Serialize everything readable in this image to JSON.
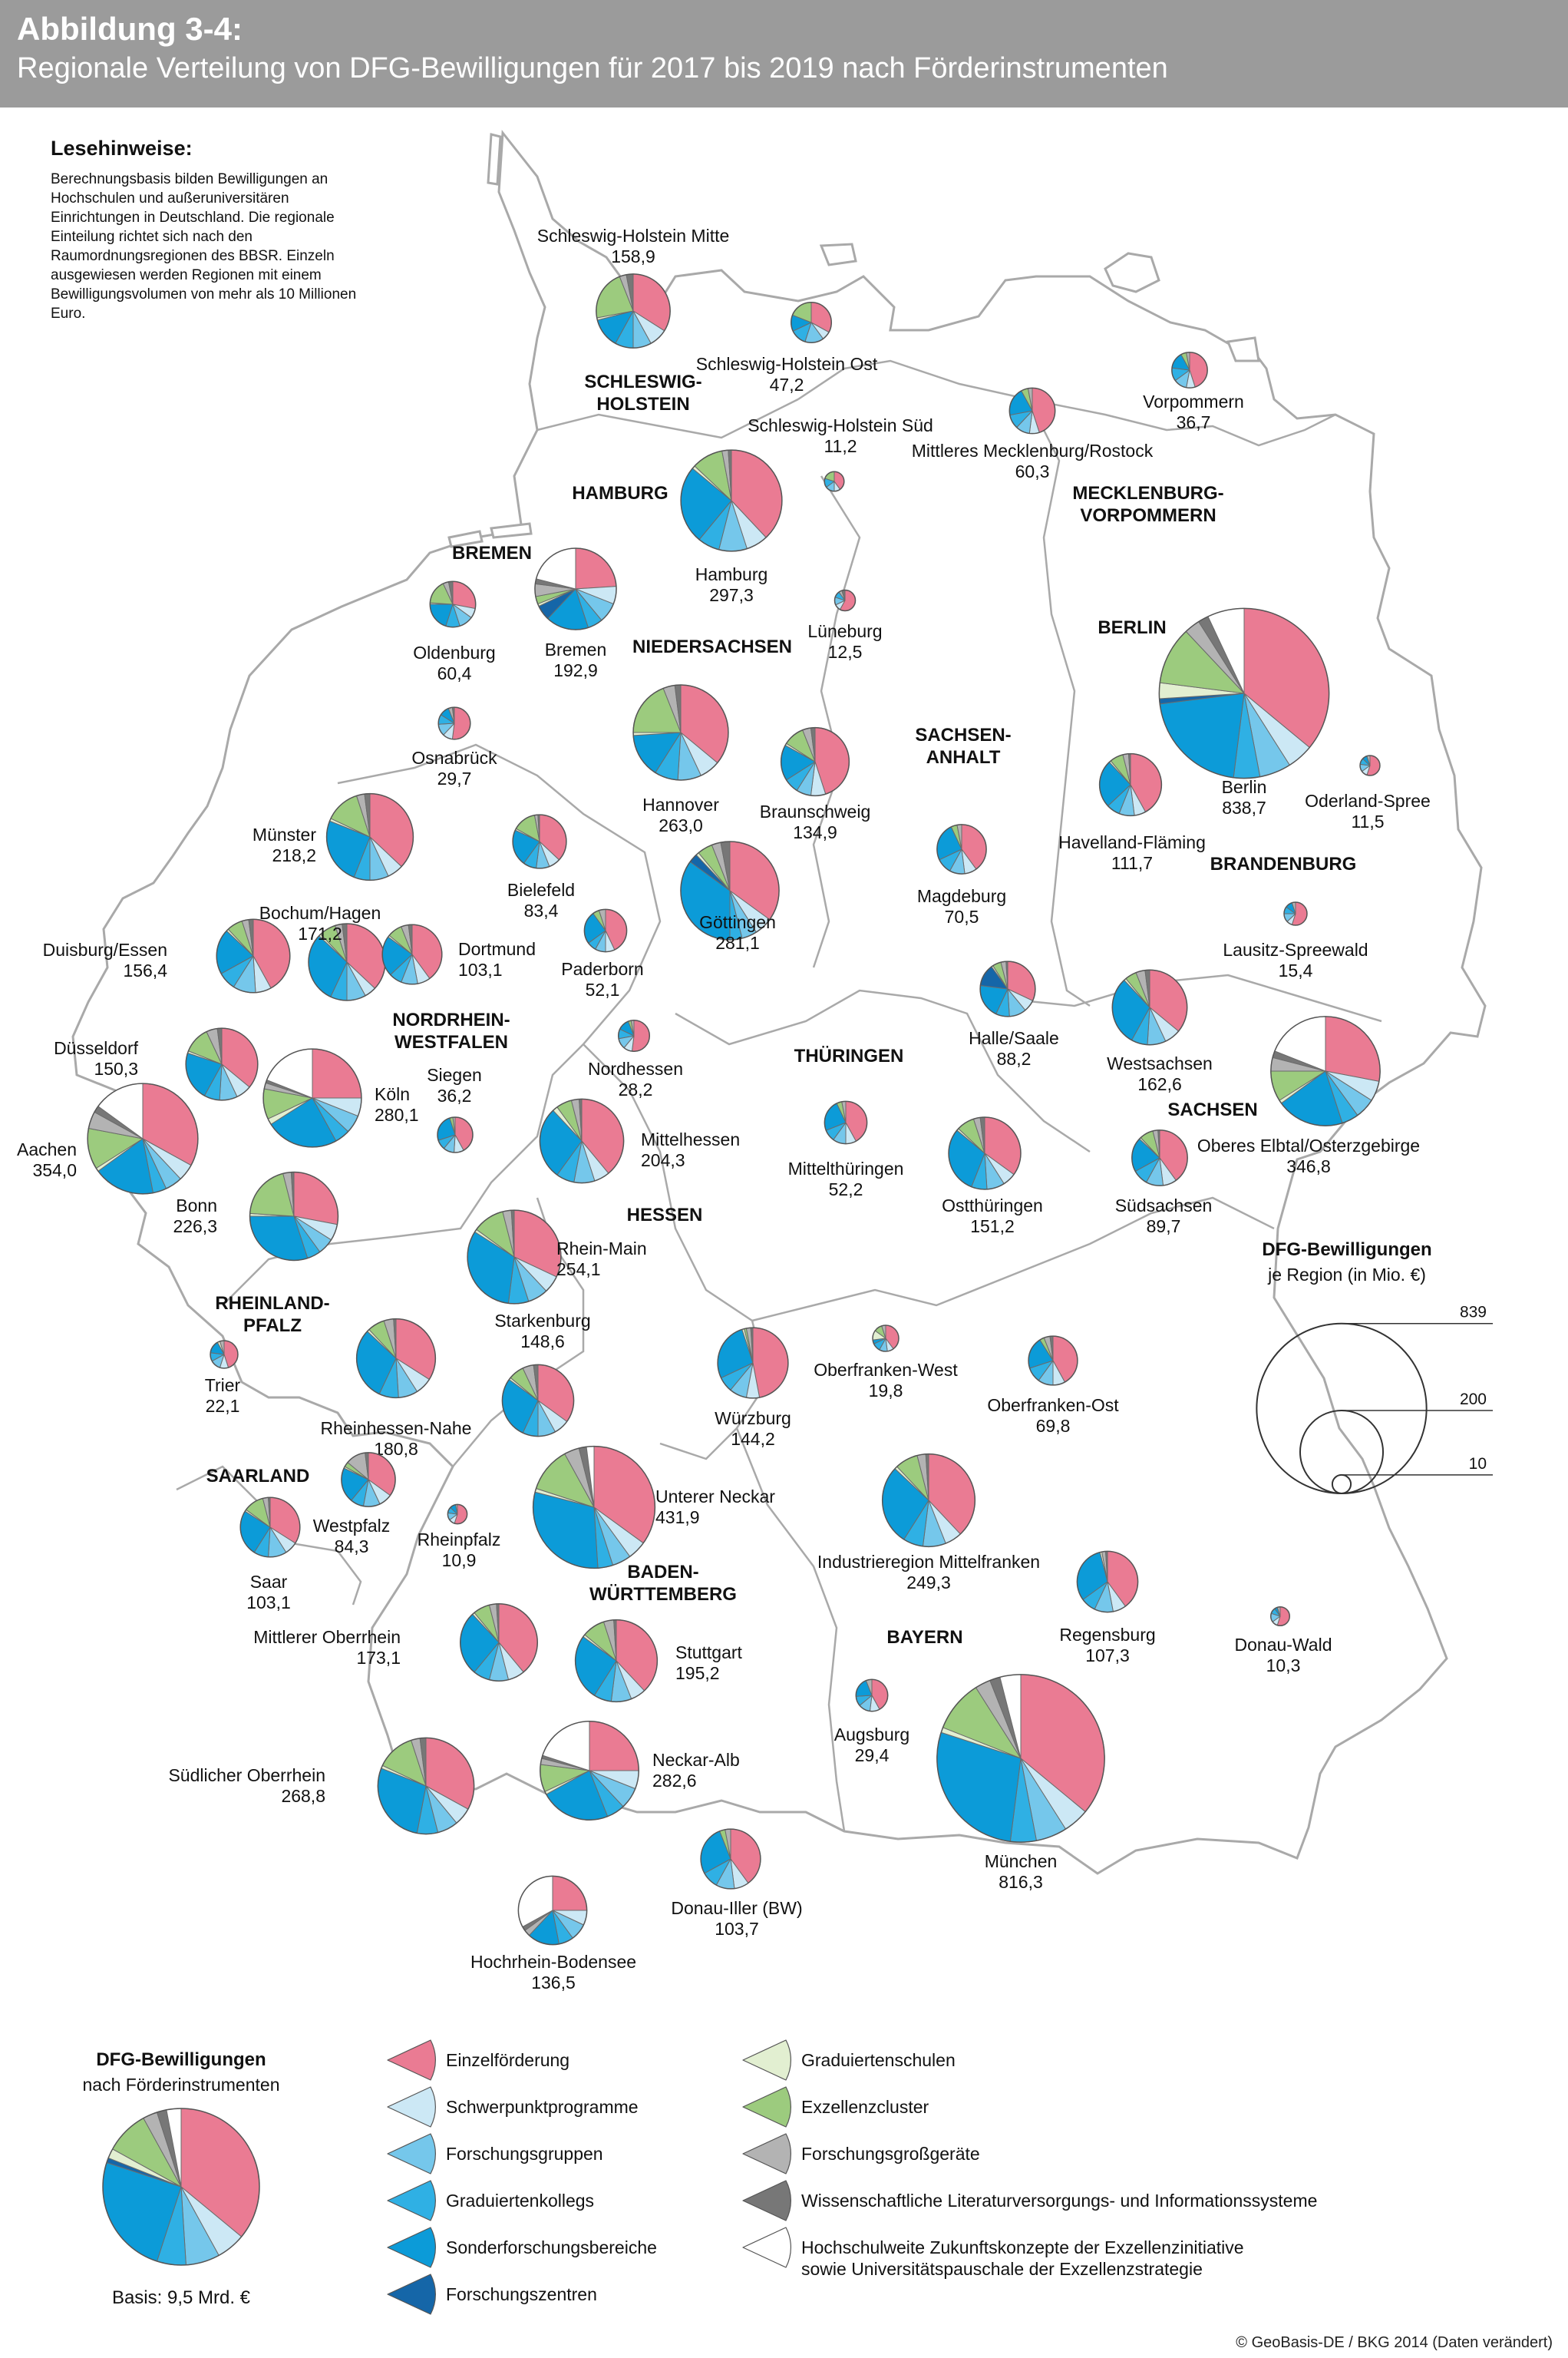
{
  "figure": {
    "label": "Abbildung 3-4:",
    "title": "Regionale Verteilung von DFG-Bewilligungen für 2017 bis 2019 nach Förderinstrumenten"
  },
  "notes": {
    "title": "Lesehinweise:",
    "text": "Berechnungsbasis bilden Bewilligungen an Hochschulen und außeruniversitären Einrichtungen in Deutschland. Die regionale Einteilung richtet sich nach den Raumordnungsregionen des BBSR. Einzeln ausgewiesen werden Regionen mit einem Bewilligungsvolumen von mehr als 10 Millionen Euro."
  },
  "colors": {
    "Einzelförderung": "#ea7b93",
    "Schwerpunktprogramme": "#cce8f5",
    "Forschungsgruppen": "#75c7eb",
    "Graduiertenkollegs": "#2fb0e4",
    "Sonderforschungsbereiche": "#0c9bd8",
    "Forschungszentren": "#1566a8",
    "Graduiertenschulen": "#e2efd1",
    "Exzellenzcluster": "#9ccb7e",
    "Forschungsgroßgeräte": "#b3b3b3",
    "Wissenschaftliche Literaturversorgungs- und Informationssysteme": "#777777",
    "Hochschulweite Zukunftskonzepte": "#ffffff",
    "map_fill": "#ffffff",
    "map_stroke": "#a9a9a9",
    "background": "#ffffff"
  },
  "states": [
    {
      "name": "SCHLESWIG-HOLSTEIN"
    },
    {
      "name": "HAMBURG"
    },
    {
      "name": "BREMEN"
    },
    {
      "name": "NIEDERSACHSEN"
    },
    {
      "name": "MECKLENBURG-VORPOMMERN"
    },
    {
      "name": "BERLIN"
    },
    {
      "name": "BRANDENBURG"
    },
    {
      "name": "SACHSEN-ANHALT"
    },
    {
      "name": "SACHSEN"
    },
    {
      "name": "THÜRINGEN"
    },
    {
      "name": "NORDRHEIN-WESTFALEN"
    },
    {
      "name": "HESSEN"
    },
    {
      "name": "RHEINLAND-PFALZ"
    },
    {
      "name": "SAARLAND"
    },
    {
      "name": "BADEN-WÜRTTEMBERG"
    },
    {
      "name": "BAYERN"
    }
  ],
  "regions": [
    {
      "name": "Schleswig-Holstein Mitte",
      "value": 158.9,
      "value_label": "158,9",
      "shares": [
        0.34,
        0.08,
        0.08,
        0.08,
        0.13,
        0,
        0.01,
        0.22,
        0.03,
        0.03,
        0
      ]
    },
    {
      "name": "Schleswig-Holstein Ost",
      "value": 47.2,
      "value_label": "47,2",
      "shares": [
        0.33,
        0.07,
        0.15,
        0.13,
        0.13,
        0,
        0,
        0.19,
        0,
        0,
        0
      ]
    },
    {
      "name": "Schleswig-Holstein Süd",
      "value": 11.2,
      "value_label": "11,2",
      "shares": [
        0.4,
        0.1,
        0.15,
        0.15,
        0,
        0,
        0,
        0.2,
        0,
        0,
        0
      ]
    },
    {
      "name": "Hamburg",
      "value": 297.3,
      "value_label": "297,3",
      "shares": [
        0.38,
        0.07,
        0.09,
        0.07,
        0.25,
        0,
        0.01,
        0.1,
        0.02,
        0.01,
        0
      ]
    },
    {
      "name": "Bremen",
      "value": 192.9,
      "value_label": "192,9",
      "shares": [
        0.24,
        0.07,
        0.08,
        0.06,
        0.17,
        0.06,
        0.01,
        0.03,
        0.05,
        0.02,
        0.21
      ]
    },
    {
      "name": "Oldenburg",
      "value": 60.4,
      "value_label": "60,4",
      "shares": [
        0.28,
        0.07,
        0.1,
        0.1,
        0.2,
        0,
        0.01,
        0.17,
        0.04,
        0.03,
        0
      ]
    },
    {
      "name": "Osnabrück",
      "value": 29.7,
      "value_label": "29,7",
      "shares": [
        0.52,
        0.1,
        0.12,
        0.1,
        0.1,
        0,
        0,
        0,
        0.04,
        0.02,
        0
      ]
    },
    {
      "name": "Lüneburg",
      "value": 12.5,
      "value_label": "12,5",
      "shares": [
        0.58,
        0.1,
        0.12,
        0.1,
        0,
        0,
        0,
        0,
        0.05,
        0.05,
        0
      ]
    },
    {
      "name": "Mittleres Mecklenburg/Rostock",
      "value": 60.3,
      "value_label": "60,3",
      "shares": [
        0.45,
        0.07,
        0.1,
        0.1,
        0.2,
        0,
        0,
        0.05,
        0.03,
        0,
        0
      ]
    },
    {
      "name": "Vorpommern",
      "value": 36.7,
      "value_label": "36,7",
      "shares": [
        0.45,
        0.08,
        0.12,
        0.12,
        0.15,
        0,
        0,
        0.05,
        0.03,
        0,
        0
      ]
    },
    {
      "name": "Hannover",
      "value": 263.0,
      "value_label": "263,0",
      "shares": [
        0.36,
        0.07,
        0.08,
        0.08,
        0.15,
        0,
        0.01,
        0.19,
        0.04,
        0.02,
        0
      ]
    },
    {
      "name": "Braunschweig",
      "value": 134.9,
      "value_label": "134,9",
      "shares": [
        0.45,
        0.07,
        0.07,
        0.07,
        0.17,
        0,
        0.01,
        0.1,
        0.04,
        0.02,
        0
      ]
    },
    {
      "name": "Göttingen",
      "value": 281.1,
      "value_label": "281,1",
      "shares": [
        0.35,
        0.06,
        0.05,
        0.04,
        0.35,
        0.03,
        0.01,
        0.05,
        0.03,
        0.03,
        0
      ]
    },
    {
      "name": "Münster",
      "value": 218.2,
      "value_label": "218,2",
      "shares": [
        0.37,
        0.06,
        0.07,
        0.06,
        0.25,
        0,
        0.01,
        0.13,
        0.03,
        0.02,
        0
      ]
    },
    {
      "name": "Bielefeld",
      "value": 83.4,
      "value_label": "83,4",
      "shares": [
        0.37,
        0.07,
        0.08,
        0.08,
        0.22,
        0,
        0.01,
        0.14,
        0.02,
        0.01,
        0
      ]
    },
    {
      "name": "Bochum/Hagen",
      "value": 171.2,
      "value_label": "171,2",
      "shares": [
        0.37,
        0.05,
        0.08,
        0.07,
        0.3,
        0,
        0.01,
        0.07,
        0.03,
        0.02,
        0
      ]
    },
    {
      "name": "Dortmund",
      "value": 103.1,
      "value_label": "103,1",
      "shares": [
        0.4,
        0.07,
        0.09,
        0.07,
        0.22,
        0,
        0.01,
        0.08,
        0.04,
        0.02,
        0
      ]
    },
    {
      "name": "Paderborn",
      "value": 52.1,
      "value_label": "52,1",
      "shares": [
        0.43,
        0.07,
        0.08,
        0.07,
        0.25,
        0,
        0,
        0.05,
        0.05,
        0,
        0
      ]
    },
    {
      "name": "Duisburg/Essen",
      "value": 156.4,
      "value_label": "156,4",
      "shares": [
        0.42,
        0.07,
        0.1,
        0.08,
        0.2,
        0,
        0.01,
        0.07,
        0.03,
        0.02,
        0
      ]
    },
    {
      "name": "Düsseldorf",
      "value": 150.3,
      "value_label": "150,3",
      "shares": [
        0.36,
        0.07,
        0.08,
        0.07,
        0.22,
        0,
        0.01,
        0.12,
        0.05,
        0.02,
        0
      ]
    },
    {
      "name": "Köln",
      "value": 280.1,
      "value_label": "280,1",
      "shares": [
        0.25,
        0.06,
        0.06,
        0.05,
        0.24,
        0,
        0.02,
        0.1,
        0.02,
        0.01,
        0.19
      ]
    },
    {
      "name": "Siegen",
      "value": 36.2,
      "value_label": "36,2",
      "shares": [
        0.42,
        0.09,
        0.1,
        0.09,
        0.25,
        0,
        0,
        0.03,
        0.02,
        0,
        0
      ]
    },
    {
      "name": "Aachen",
      "value": 354.0,
      "value_label": "354,0",
      "shares": [
        0.33,
        0.05,
        0.05,
        0.04,
        0.18,
        0,
        0.01,
        0.12,
        0.05,
        0.02,
        0.15
      ]
    },
    {
      "name": "Bonn",
      "value": 226.3,
      "value_label": "226,3",
      "shares": [
        0.28,
        0.06,
        0.06,
        0.05,
        0.3,
        0,
        0.01,
        0.2,
        0.03,
        0.01,
        0
      ]
    },
    {
      "name": "Nordhessen",
      "value": 28.2,
      "value_label": "28,2",
      "shares": [
        0.52,
        0.09,
        0.11,
        0.1,
        0.12,
        0,
        0,
        0.03,
        0.03,
        0,
        0
      ]
    },
    {
      "name": "Mittelhessen",
      "value": 204.3,
      "value_label": "204,3",
      "shares": [
        0.39,
        0.06,
        0.08,
        0.07,
        0.28,
        0,
        0.02,
        0.06,
        0.03,
        0.01,
        0
      ]
    },
    {
      "name": "Rhein-Main",
      "value": 254.1,
      "value_label": "254,1",
      "shares": [
        0.32,
        0.06,
        0.07,
        0.07,
        0.32,
        0,
        0.01,
        0.11,
        0.03,
        0.01,
        0
      ]
    },
    {
      "name": "Starkenburg",
      "value": 148.6,
      "value_label": "148,6",
      "shares": [
        0.35,
        0.07,
        0.08,
        0.07,
        0.28,
        0,
        0.01,
        0.07,
        0.05,
        0.02,
        0
      ]
    },
    {
      "name": "Magdeburg",
      "value": 70.5,
      "value_label": "70,5",
      "shares": [
        0.4,
        0.08,
        0.1,
        0.1,
        0.25,
        0,
        0,
        0.04,
        0.03,
        0,
        0
      ]
    },
    {
      "name": "Halle/Saale",
      "value": 88.2,
      "value_label": "88,2",
      "shares": [
        0.32,
        0.07,
        0.1,
        0.08,
        0.2,
        0.13,
        0.01,
        0.05,
        0.03,
        0.01,
        0
      ]
    },
    {
      "name": "Mittelthüringen",
      "value": 52.2,
      "value_label": "52,2",
      "shares": [
        0.42,
        0.08,
        0.1,
        0.09,
        0.24,
        0,
        0,
        0.04,
        0.03,
        0,
        0
      ]
    },
    {
      "name": "Ostthüringen",
      "value": 151.2,
      "value_label": "151,2",
      "shares": [
        0.35,
        0.06,
        0.08,
        0.07,
        0.3,
        0,
        0.01,
        0.08,
        0.03,
        0.02,
        0
      ]
    },
    {
      "name": "Berlin",
      "value": 838.7,
      "value_label": "838,7",
      "shares": [
        0.36,
        0.05,
        0.06,
        0.05,
        0.21,
        0.01,
        0.03,
        0.11,
        0.03,
        0.02,
        0.07
      ]
    },
    {
      "name": "Havelland-Fläming",
      "value": 111.7,
      "value_label": "111,7",
      "shares": [
        0.42,
        0.06,
        0.08,
        0.07,
        0.25,
        0,
        0.01,
        0.07,
        0.03,
        0.01,
        0
      ]
    },
    {
      "name": "Oderland-Spree",
      "value": 11.5,
      "value_label": "11,5",
      "shares": [
        0.55,
        0.1,
        0.12,
        0.1,
        0.08,
        0,
        0,
        0,
        0.05,
        0,
        0
      ]
    },
    {
      "name": "Lausitz-Spreewald",
      "value": 15.4,
      "value_label": "15,4",
      "shares": [
        0.55,
        0.08,
        0.12,
        0.1,
        0.1,
        0,
        0,
        0,
        0.05,
        0,
        0
      ]
    },
    {
      "name": "Westsachsen",
      "value": 162.6,
      "value_label": "162,6",
      "shares": [
        0.36,
        0.07,
        0.08,
        0.07,
        0.3,
        0,
        0.01,
        0.05,
        0.04,
        0.02,
        0
      ]
    },
    {
      "name": "Oberes Elbtal/Osterzgebirge",
      "value": 346.8,
      "value_label": "346,8",
      "shares": [
        0.28,
        0.06,
        0.06,
        0.05,
        0.2,
        0,
        0.01,
        0.09,
        0.04,
        0.02,
        0.19
      ]
    },
    {
      "name": "Südsachsen",
      "value": 89.7,
      "value_label": "89,7",
      "shares": [
        0.4,
        0.08,
        0.1,
        0.09,
        0.2,
        0,
        0.01,
        0.08,
        0.03,
        0.01,
        0
      ]
    },
    {
      "name": "Trier",
      "value": 22.1,
      "value_label": "22,1",
      "shares": [
        0.45,
        0.1,
        0.12,
        0.1,
        0.15,
        0,
        0.03,
        0,
        0.05,
        0,
        0
      ]
    },
    {
      "name": "Rheinhessen-Nahe",
      "value": 180.8,
      "value_label": "180,8",
      "shares": [
        0.34,
        0.07,
        0.08,
        0.08,
        0.3,
        0,
        0.01,
        0.07,
        0.04,
        0.01,
        0
      ]
    },
    {
      "name": "Westpfalz",
      "value": 84.3,
      "value_label": "84,3",
      "shares": [
        0.35,
        0.08,
        0.1,
        0.08,
        0.21,
        0,
        0.01,
        0.03,
        0.12,
        0.02,
        0
      ]
    },
    {
      "name": "Rheinpfalz",
      "value": 10.9,
      "value_label": "10,9",
      "shares": [
        0.55,
        0.1,
        0.12,
        0.1,
        0.1,
        0,
        0,
        0,
        0.03,
        0,
        0
      ]
    },
    {
      "name": "Saar",
      "value": 103.1,
      "value_label": "103,1",
      "shares": [
        0.34,
        0.07,
        0.1,
        0.08,
        0.25,
        0,
        0.01,
        0.11,
        0.03,
        0.01,
        0
      ]
    },
    {
      "name": "Unterer Neckar",
      "value": 431.9,
      "value_label": "431,9",
      "shares": [
        0.35,
        0.05,
        0.05,
        0.04,
        0.3,
        0,
        0.01,
        0.12,
        0.04,
        0.02,
        0.02
      ]
    },
    {
      "name": "Würzburg",
      "value": 144.2,
      "value_label": "144,2",
      "shares": [
        0.47,
        0.06,
        0.08,
        0.07,
        0.27,
        0,
        0.01,
        0.01,
        0.02,
        0.01,
        0
      ]
    },
    {
      "name": "Oberfranken-West",
      "value": 19.8,
      "value_label": "19,8",
      "shares": [
        0.4,
        0.08,
        0.1,
        0.1,
        0.05,
        0,
        0.12,
        0.1,
        0.05,
        0,
        0
      ]
    },
    {
      "name": "Oberfranken-Ost",
      "value": 69.8,
      "value_label": "69,8",
      "shares": [
        0.42,
        0.08,
        0.1,
        0.1,
        0.21,
        0,
        0,
        0.03,
        0.04,
        0.02,
        0
      ]
    },
    {
      "name": "Industrieregion Mittelfranken",
      "value": 249.3,
      "value_label": "249,3",
      "shares": [
        0.38,
        0.06,
        0.08,
        0.07,
        0.28,
        0,
        0.01,
        0.08,
        0.03,
        0.01,
        0
      ]
    },
    {
      "name": "Regensburg",
      "value": 107.3,
      "value_label": "107,3",
      "shares": [
        0.4,
        0.07,
        0.1,
        0.08,
        0.31,
        0,
        0.01,
        0,
        0.02,
        0.01,
        0
      ]
    },
    {
      "name": "Donau-Wald",
      "value": 10.3,
      "value_label": "10,3",
      "shares": [
        0.55,
        0.1,
        0.15,
        0.1,
        0.05,
        0,
        0,
        0,
        0.05,
        0,
        0
      ]
    },
    {
      "name": "Mittlerer Oberrhein",
      "value": 173.1,
      "value_label": "173,1",
      "shares": [
        0.39,
        0.07,
        0.08,
        0.07,
        0.27,
        0,
        0.01,
        0.07,
        0.03,
        0.01,
        0
      ]
    },
    {
      "name": "Stuttgart",
      "value": 195.2,
      "value_label": "195,2",
      "shares": [
        0.38,
        0.06,
        0.08,
        0.07,
        0.26,
        0,
        0.01,
        0.09,
        0.04,
        0.01,
        0
      ]
    },
    {
      "name": "Augsburg",
      "value": 29.4,
      "value_label": "29,4",
      "shares": [
        0.42,
        0.1,
        0.12,
        0.1,
        0.2,
        0,
        0,
        0,
        0.06,
        0,
        0
      ]
    },
    {
      "name": "München",
      "value": 816.3,
      "value_label": "816,3",
      "shares": [
        0.36,
        0.05,
        0.06,
        0.05,
        0.28,
        0,
        0.01,
        0.1,
        0.03,
        0.02,
        0.04
      ]
    },
    {
      "name": "Südlicher Oberrhein",
      "value": 268.8,
      "value_label": "268,8",
      "shares": [
        0.33,
        0.06,
        0.07,
        0.07,
        0.28,
        0,
        0.01,
        0.13,
        0.03,
        0.02,
        0
      ]
    },
    {
      "name": "Neckar-Alb",
      "value": 282.6,
      "value_label": "282,6",
      "shares": [
        0.25,
        0.06,
        0.07,
        0.06,
        0.23,
        0,
        0.01,
        0.09,
        0.02,
        0.01,
        0.2
      ]
    },
    {
      "name": "Donau-Iller (BW)",
      "value": 103.7,
      "value_label": "103,7",
      "shares": [
        0.4,
        0.08,
        0.1,
        0.09,
        0.27,
        0,
        0,
        0.03,
        0.03,
        0,
        0
      ]
    },
    {
      "name": "Hochrhein-Bodensee",
      "value": 136.5,
      "value_label": "136,5",
      "shares": [
        0.25,
        0.07,
        0.08,
        0.07,
        0.15,
        0,
        0,
        0,
        0.03,
        0.02,
        0.33
      ]
    }
  ],
  "size_legend": {
    "title_line1": "DFG-Bewilligungen",
    "title_line2": "je Region (in Mio. €)",
    "circles": [
      {
        "value": 839,
        "label": "839"
      },
      {
        "value": 200,
        "label": "200"
      },
      {
        "value": 10,
        "label": "10"
      }
    ]
  },
  "instrument_legend": {
    "title_line1": "DFG-Bewilligungen",
    "title_line2": "nach Förderinstrumenten",
    "basis_label": "Basis: 9,5 Mrd. €",
    "example_shares": [
      0.36,
      0.06,
      0.07,
      0.06,
      0.25,
      0.01,
      0.02,
      0.09,
      0.03,
      0.02,
      0.03
    ],
    "items": [
      {
        "key": "Einzelförderung",
        "lines": [
          "Einzelförderung"
        ]
      },
      {
        "key": "Schwerpunktprogramme",
        "lines": [
          "Schwerpunktprogramme"
        ]
      },
      {
        "key": "Forschungsgruppen",
        "lines": [
          "Forschungsgruppen"
        ]
      },
      {
        "key": "Graduiertenkollegs",
        "lines": [
          "Graduiertenkollegs"
        ]
      },
      {
        "key": "Sonderforschungsbereiche",
        "lines": [
          "Sonderforschungsbereiche"
        ]
      },
      {
        "key": "Forschungszentren",
        "lines": [
          "Forschungszentren"
        ]
      },
      {
        "key": "Graduiertenschulen",
        "lines": [
          "Graduiertenschulen"
        ]
      },
      {
        "key": "Exzellenzcluster",
        "lines": [
          "Exzellenzcluster"
        ]
      },
      {
        "key": "Forschungsgroßgeräte",
        "lines": [
          "Forschungsgroßgeräte"
        ]
      },
      {
        "key": "Wissenschaftliche Literaturversorgungs- und Informationssysteme",
        "lines": [
          "Wissenschaftliche Literaturversorgungs- und Informationssysteme"
        ]
      },
      {
        "key": "Hochschulweite Zukunftskonzepte",
        "lines": [
          "Hochschulweite Zukunftskonzepte der Exzellenzinitiative",
          "sowie Universitätspauschale der Exzellenzstrategie"
        ]
      }
    ]
  },
  "copyright": "© GeoBasis-DE / BKG 2014 (Daten verändert)"
}
